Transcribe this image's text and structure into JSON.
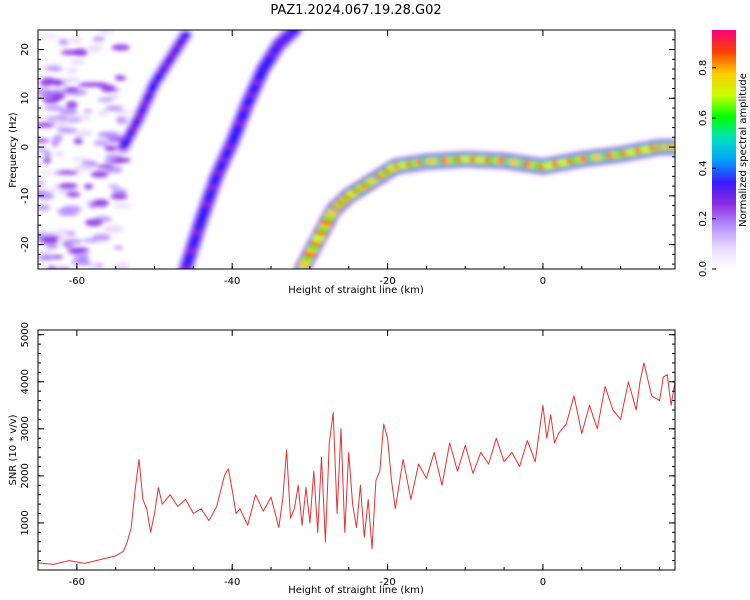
{
  "figure_title": "PAZ1.2024.067.19.28.G02",
  "colors": {
    "snr_line": "#e53333",
    "axis": "#000000",
    "colormap": [
      "#ffffff",
      "#e8d8ff",
      "#b58cff",
      "#8a2be2",
      "#3a1cff",
      "#00a0ff",
      "#00e0c0",
      "#00ff00",
      "#c8ff00",
      "#ffcc00",
      "#ff4000",
      "#ff0080"
    ]
  },
  "chart_data": [
    {
      "type": "heatmap",
      "title": "PAZ1.2024.067.19.28.G02",
      "xlabel": "Height of straight line (km)",
      "ylabel": "Frequency (Hz)",
      "xlim": [
        -65,
        17
      ],
      "ylim": [
        -25,
        24
      ],
      "xticks": [
        -60,
        -40,
        -20,
        0
      ],
      "yticks": [
        20,
        10,
        0,
        -10,
        -20
      ],
      "colorbar": {
        "label": "Normalized spectral amplitude",
        "range": [
          0,
          0.95
        ],
        "ticks": [
          "0.0",
          "0.2",
          "0.4",
          "0.6",
          "0.8"
        ],
        "tick_values": [
          0,
          0.2,
          0.4,
          0.6,
          0.8
        ]
      },
      "features": [
        {
          "kind": "ridge",
          "points": [
            [
              -54,
              0
            ],
            [
              -52,
              6
            ],
            [
              -50,
              13
            ],
            [
              -48,
              18
            ],
            [
              -46,
              23
            ]
          ],
          "amplitude": 0.25
        },
        {
          "kind": "ridge",
          "points": [
            [
              -46,
              -25
            ],
            [
              -44,
              -15
            ],
            [
              -42,
              -6
            ],
            [
              -40,
              1
            ],
            [
              -38,
              9
            ],
            [
              -36,
              16
            ],
            [
              -34,
              21
            ],
            [
              -32,
              24
            ]
          ],
          "amplitude": 0.3
        },
        {
          "kind": "ridge",
          "points": [
            [
              -31,
              -25
            ],
            [
              -29,
              -19
            ],
            [
              -27,
              -13
            ],
            [
              -25,
              -10
            ],
            [
              -22,
              -7
            ],
            [
              -19,
              -4
            ],
            [
              -15,
              -3
            ],
            [
              -10,
              -2.5
            ],
            [
              -5,
              -2.8
            ],
            [
              0,
              -4
            ],
            [
              5,
              -2.5
            ],
            [
              10,
              -1.5
            ],
            [
              15,
              0
            ],
            [
              17,
              0
            ]
          ],
          "amplitude": 0.8
        },
        {
          "kind": "noise_band",
          "x_range": [
            -65,
            -54
          ],
          "y_range": [
            -25,
            24
          ],
          "amplitude": 0.15
        }
      ]
    },
    {
      "type": "line",
      "xlabel": "Height of straight line (km)",
      "ylabel": "SNR (10 * v/v)",
      "xlim": [
        -65,
        17
      ],
      "ylim": [
        0,
        5100
      ],
      "xticks": [
        -60,
        -40,
        -20,
        0
      ],
      "yticks": [
        1000,
        2000,
        3000,
        4000,
        5000
      ],
      "grid": false,
      "series": [
        {
          "x": [
            -65,
            -63,
            -61,
            -59,
            -57,
            -55,
            -54,
            -53.5,
            -53,
            -52.5,
            -52,
            -51.5,
            -51,
            -50.5,
            -50,
            -49.5,
            -49,
            -48,
            -47,
            -46,
            -45,
            -44,
            -43,
            -42,
            -41,
            -40.5,
            -40,
            -39.5,
            -39,
            -38,
            -37,
            -36,
            -35,
            -34,
            -33.5,
            -33,
            -32.5,
            -32,
            -31.5,
            -31,
            -30.5,
            -30,
            -29.5,
            -29,
            -28.5,
            -28,
            -27.5,
            -27,
            -26.5,
            -26,
            -25.5,
            -25,
            -24.5,
            -24,
            -23.5,
            -23,
            -22.5,
            -22,
            -21.5,
            -21,
            -20.5,
            -20,
            -19.5,
            -19,
            -18,
            -17,
            -16,
            -15,
            -14,
            -13,
            -12,
            -11,
            -10,
            -9,
            -8,
            -7,
            -6,
            -5,
            -4,
            -3,
            -2,
            -1,
            0,
            0.5,
            1,
            1.5,
            2,
            3,
            4,
            5,
            6,
            7,
            8,
            9,
            10,
            11,
            12,
            12.5,
            13,
            14,
            15,
            15.5,
            16,
            16.5,
            17
          ],
          "y": [
            150,
            120,
            200,
            140,
            220,
            300,
            400,
            600,
            900,
            1700,
            2350,
            1500,
            1300,
            800,
            1200,
            1750,
            1400,
            1600,
            1350,
            1500,
            1200,
            1300,
            1050,
            1350,
            2000,
            2150,
            1700,
            1200,
            1300,
            950,
            1600,
            1250,
            1550,
            900,
            1500,
            2550,
            1100,
            1300,
            1800,
            950,
            1750,
            1000,
            2100,
            800,
            2400,
            600,
            2700,
            3350,
            1200,
            3000,
            800,
            2500,
            1400,
            900,
            1800,
            700,
            1500,
            450,
            1900,
            2100,
            3100,
            2800,
            1900,
            1300,
            2350,
            1500,
            2250,
            1950,
            2500,
            1800,
            2700,
            2100,
            2650,
            2050,
            2500,
            2250,
            2800,
            2300,
            2500,
            2200,
            2750,
            2300,
            3500,
            2800,
            3300,
            2700,
            2900,
            3100,
            3700,
            2900,
            3500,
            3000,
            3900,
            3400,
            3200,
            4000,
            3400,
            4000,
            4400,
            3700,
            3600,
            4100,
            4150,
            3500,
            4000
          ]
        }
      ]
    }
  ]
}
